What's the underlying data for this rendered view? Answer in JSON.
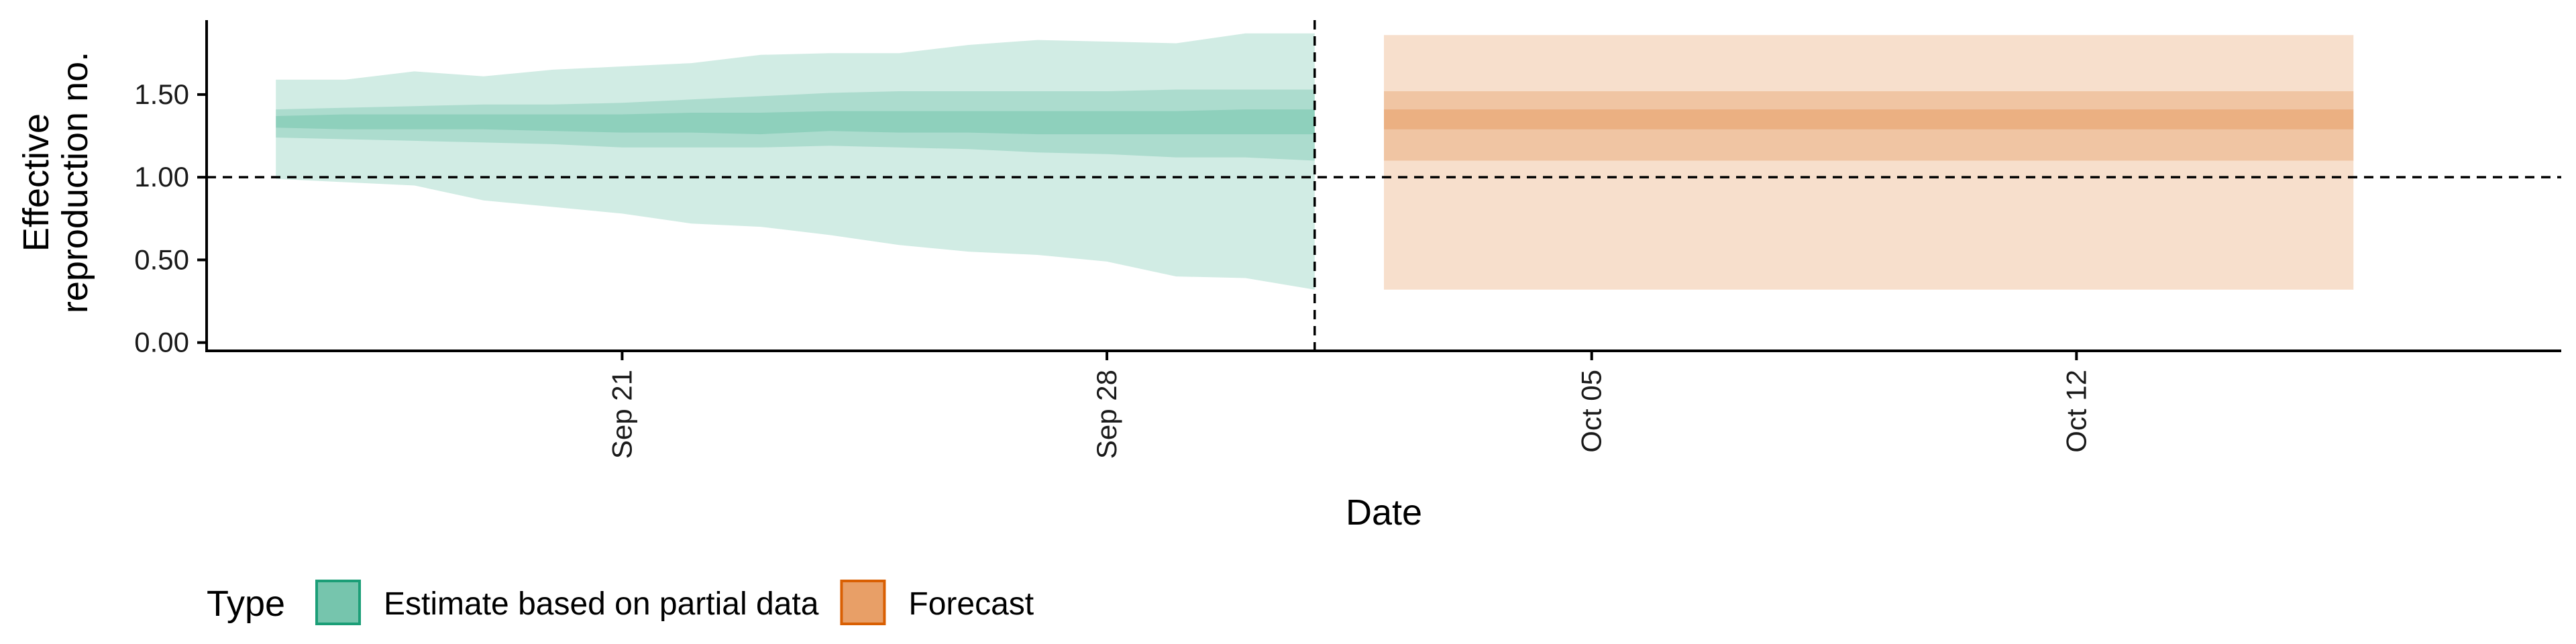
{
  "chart_data": {
    "type": "area",
    "title": "",
    "xlabel": "Date",
    "ylabel": [
      "Effective",
      "reproduction no."
    ],
    "ylim": [
      -0.05,
      1.95
    ],
    "x_range": [
      "2020-09-15",
      "2020-10-19"
    ],
    "y_ticks": [
      0.0,
      0.5,
      1.0,
      1.5
    ],
    "y_tick_labels": [
      "0.00",
      "0.50",
      "1.00",
      "1.50"
    ],
    "x_ticks": [
      "2020-09-21",
      "2020-09-28",
      "2020-10-05",
      "2020-10-12"
    ],
    "x_tick_labels": [
      "Sep 21",
      "Sep 28",
      "Oct 05",
      "Oct 12"
    ],
    "reference_line_y": 1.0,
    "reference_line_x": "2020-10-01",
    "grid": false,
    "legend": {
      "title": "Type",
      "position": "bottom-left",
      "items": [
        {
          "label": "Estimate based on partial data",
          "color": "#1b9e77"
        },
        {
          "label": "Forecast",
          "color": "#d95f02"
        }
      ]
    },
    "series": [
      {
        "name": "Estimate based on partial data",
        "color": "#1b9e77",
        "x": [
          "2020-09-16",
          "2020-09-17",
          "2020-09-18",
          "2020-09-19",
          "2020-09-20",
          "2020-09-21",
          "2020-09-22",
          "2020-09-23",
          "2020-09-24",
          "2020-09-25",
          "2020-09-26",
          "2020-09-27",
          "2020-09-28",
          "2020-09-29",
          "2020-09-30",
          "2020-10-01"
        ],
        "median": [
          1.33,
          1.33,
          1.33,
          1.33,
          1.33,
          1.32,
          1.33,
          1.33,
          1.34,
          1.34,
          1.34,
          1.34,
          1.34,
          1.34,
          1.34,
          1.34
        ],
        "lower_20": [
          1.3,
          1.29,
          1.29,
          1.29,
          1.28,
          1.27,
          1.27,
          1.26,
          1.28,
          1.27,
          1.27,
          1.26,
          1.26,
          1.26,
          1.26,
          1.26
        ],
        "upper_20": [
          1.37,
          1.38,
          1.38,
          1.38,
          1.38,
          1.38,
          1.39,
          1.39,
          1.4,
          1.4,
          1.4,
          1.4,
          1.4,
          1.4,
          1.41,
          1.41
        ],
        "lower_50": [
          1.24,
          1.23,
          1.22,
          1.21,
          1.2,
          1.18,
          1.18,
          1.18,
          1.19,
          1.18,
          1.17,
          1.15,
          1.14,
          1.12,
          1.12,
          1.1
        ],
        "upper_50": [
          1.41,
          1.42,
          1.43,
          1.44,
          1.44,
          1.45,
          1.47,
          1.49,
          1.51,
          1.52,
          1.52,
          1.52,
          1.52,
          1.53,
          1.53,
          1.53
        ],
        "lower_90": [
          0.99,
          0.97,
          0.95,
          0.86,
          0.82,
          0.78,
          0.72,
          0.7,
          0.65,
          0.59,
          0.55,
          0.53,
          0.49,
          0.4,
          0.39,
          0.32
        ],
        "upper_90": [
          1.59,
          1.59,
          1.64,
          1.61,
          1.65,
          1.67,
          1.69,
          1.74,
          1.75,
          1.75,
          1.8,
          1.83,
          1.82,
          1.81,
          1.87,
          1.87
        ]
      },
      {
        "name": "Forecast",
        "color": "#d95f02",
        "x": [
          "2020-10-02",
          "2020-10-03",
          "2020-10-04",
          "2020-10-05",
          "2020-10-06",
          "2020-10-07",
          "2020-10-08",
          "2020-10-09",
          "2020-10-10",
          "2020-10-11",
          "2020-10-12",
          "2020-10-13",
          "2020-10-14",
          "2020-10-15",
          "2020-10-16"
        ],
        "median": [
          1.35,
          1.35,
          1.35,
          1.35,
          1.35,
          1.35,
          1.35,
          1.35,
          1.35,
          1.35,
          1.35,
          1.35,
          1.35,
          1.35,
          1.35
        ],
        "lower_20": [
          1.29,
          1.29,
          1.29,
          1.29,
          1.29,
          1.29,
          1.29,
          1.29,
          1.29,
          1.29,
          1.29,
          1.29,
          1.29,
          1.29,
          1.29
        ],
        "upper_20": [
          1.41,
          1.41,
          1.41,
          1.41,
          1.41,
          1.41,
          1.41,
          1.41,
          1.41,
          1.41,
          1.41,
          1.41,
          1.41,
          1.41,
          1.41
        ],
        "lower_50": [
          1.1,
          1.1,
          1.1,
          1.1,
          1.1,
          1.1,
          1.1,
          1.1,
          1.1,
          1.1,
          1.1,
          1.1,
          1.1,
          1.1,
          1.1
        ],
        "upper_50": [
          1.52,
          1.52,
          1.52,
          1.52,
          1.52,
          1.52,
          1.52,
          1.52,
          1.52,
          1.52,
          1.52,
          1.52,
          1.52,
          1.52,
          1.52
        ],
        "lower_90": [
          0.32,
          0.32,
          0.32,
          0.32,
          0.32,
          0.32,
          0.32,
          0.32,
          0.32,
          0.32,
          0.32,
          0.32,
          0.32,
          0.32,
          0.32
        ],
        "upper_90": [
          1.86,
          1.86,
          1.86,
          1.86,
          1.86,
          1.86,
          1.86,
          1.86,
          1.86,
          1.86,
          1.86,
          1.86,
          1.86,
          1.86,
          1.86
        ]
      }
    ]
  }
}
